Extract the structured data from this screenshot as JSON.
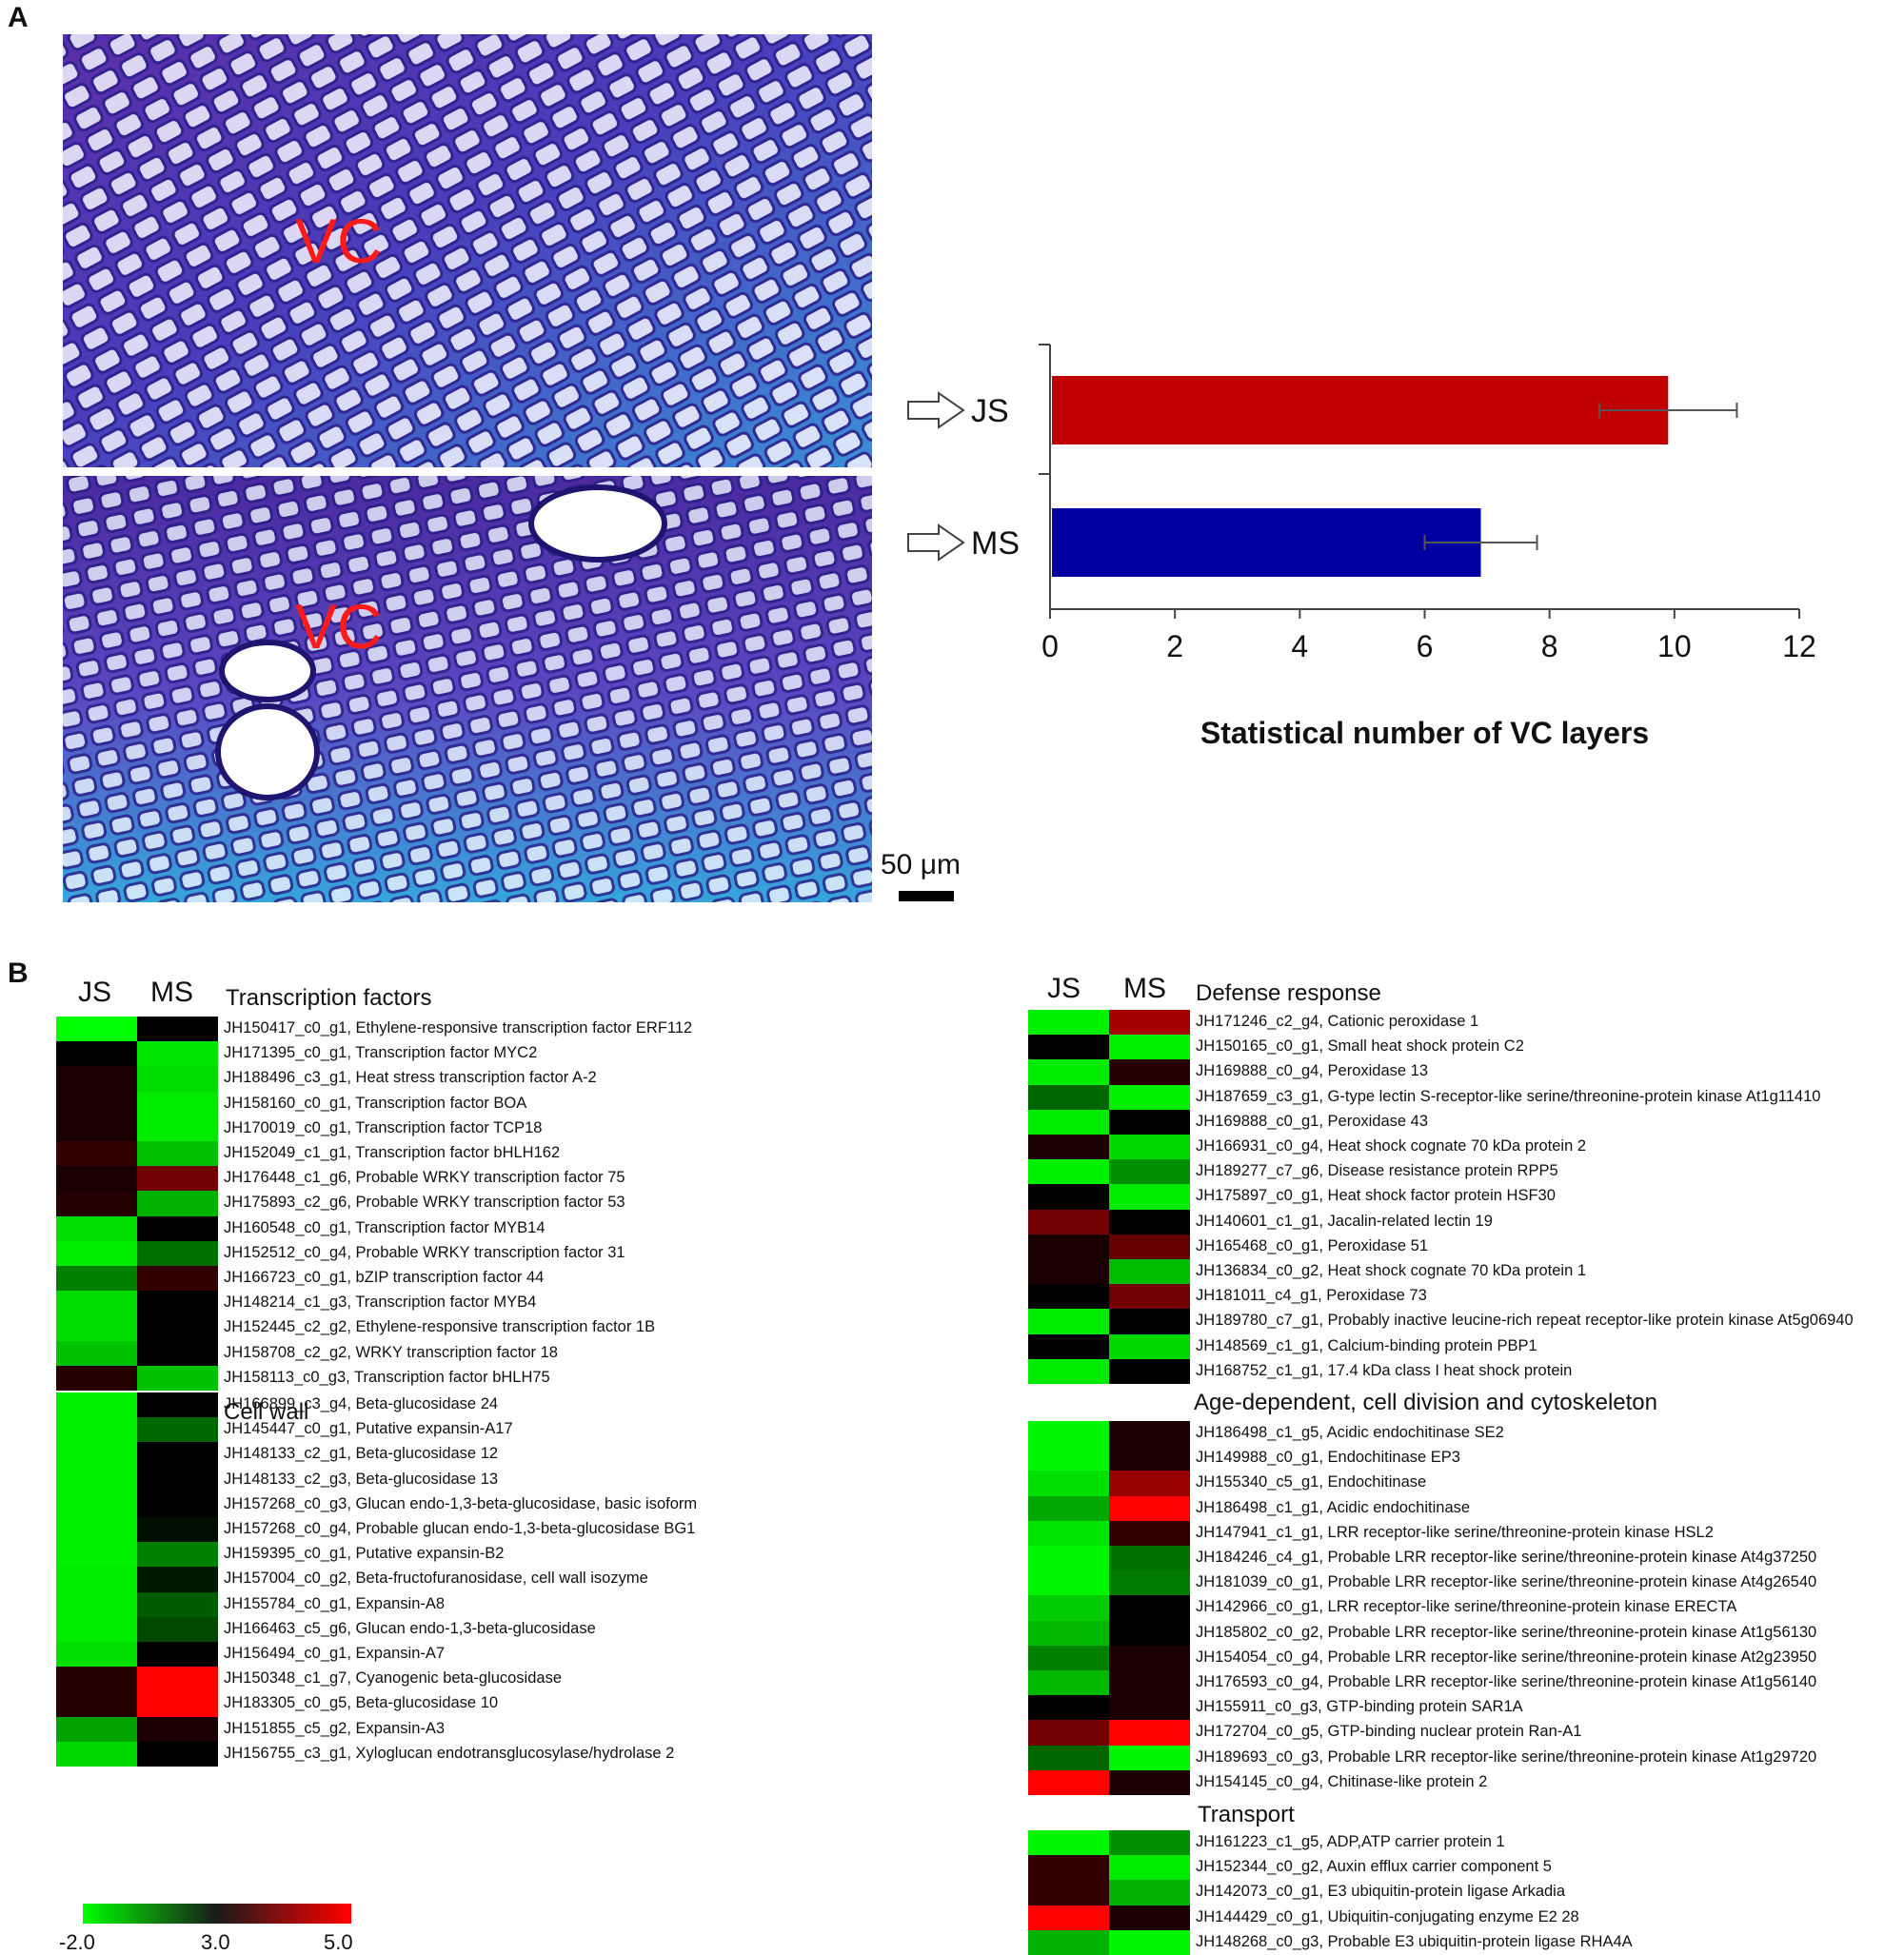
{
  "panels": {
    "a": "A",
    "b": "B"
  },
  "micrographs": {
    "top_label": "VC",
    "bottom_label": "VC",
    "scale_bar": "50 μm"
  },
  "chart_data": {
    "type": "bar",
    "orientation": "horizontal",
    "categories": [
      "JS",
      "MS"
    ],
    "values": [
      9.9,
      6.9
    ],
    "errors": [
      1.1,
      0.9
    ],
    "colors": [
      "#c00000",
      "#0000a0"
    ],
    "xlabel": "Statistical number of VC layers",
    "xlim": [
      0,
      12
    ],
    "xticks": [
      "0",
      "2",
      "4",
      "6",
      "8",
      "10",
      "12"
    ]
  },
  "heatmap_colors": {
    "low": "#00ff00",
    "mid": "#000000",
    "high": "#ff0000"
  },
  "colorscale": {
    "ticks": [
      "-2.0",
      "3.0",
      "5.0"
    ]
  },
  "col_headers": [
    "JS",
    "MS"
  ],
  "groups": [
    {
      "title": "Transcription factors",
      "rows": [
        {
          "label": "JH150417_c0_g1, Ethylene-responsive transcription factor ERF112",
          "js": -2.0,
          "ms": 3.0
        },
        {
          "label": "JH171395_c0_g1, Transcription factor MYC2",
          "js": 3.0,
          "ms": -1.5
        },
        {
          "label": "JH188496_c3_g1, Heat stress transcription factor A-2",
          "js": 3.2,
          "ms": -1.3
        },
        {
          "label": "JH158160_c0_g1, Transcription factor BOA",
          "js": 3.2,
          "ms": -1.6
        },
        {
          "label": "JH170019_c0_g1, Transcription factor TCP18",
          "js": 3.2,
          "ms": -1.6
        },
        {
          "label": "JH152049_c1_g1, Transcription factor bHLH162",
          "js": 3.4,
          "ms": -0.8
        },
        {
          "label": "JH176448_c1_g6, Probable WRKY transcription factor 75",
          "js": 3.2,
          "ms": 3.9
        },
        {
          "label": "JH175893_c2_g6, Probable WRKY transcription factor 53",
          "js": 3.3,
          "ms": -0.5
        },
        {
          "label": "JH160548_c0_g1, Transcription factor MYB14",
          "js": -1.4,
          "ms": 3.0
        },
        {
          "label": "JH152512_c0_g4, Probable WRKY transcription factor 31",
          "js": -1.6,
          "ms": 0.8
        },
        {
          "label": "JH166723_c0_g1, bZIP transcription factor 44",
          "js": 0.5,
          "ms": 3.4
        },
        {
          "label": "JH148214_c1_g3, Transcription factor MYB4",
          "js": -1.3,
          "ms": 3.0
        },
        {
          "label": "JH152445_c2_g2, Ethylene-responsive transcription factor 1B",
          "js": -1.3,
          "ms": 3.0
        },
        {
          "label": "JH158708_c2_g2, WRKY transcription factor 18",
          "js": -0.8,
          "ms": 3.0
        },
        {
          "label": "JH158113_c0_g3, Transcription factor bHLH75",
          "js": 3.3,
          "ms": -0.8
        }
      ]
    },
    {
      "title": "Cell wall",
      "rows": [
        {
          "label": "JH166899_c3_g4, Beta-glucosidase 24",
          "js": -1.7,
          "ms": 3.0
        },
        {
          "label": "JH145447_c0_g1, Putative expansin-A17",
          "js": -1.7,
          "ms": 1.0
        },
        {
          "label": "JH148133_c2_g1, Beta-glucosidase 12",
          "js": -1.7,
          "ms": 3.0
        },
        {
          "label": "JH148133_c2_g3, Beta-glucosidase 13",
          "js": -1.7,
          "ms": 3.0
        },
        {
          "label": "JH157268_c0_g3, Glucan endo-1,3-beta-glucosidase, basic isoform",
          "js": -1.7,
          "ms": 3.0
        },
        {
          "label": "JH157268_c0_g4, Probable glucan endo-1,3-beta-glucosidase BG1",
          "js": -1.7,
          "ms": 2.7
        },
        {
          "label": "JH159395_c0_g1, Putative expansin-B2",
          "js": -1.7,
          "ms": 0.5
        },
        {
          "label": "JH157004_c0_g2, Beta-fructofuranosidase, cell wall isozyme",
          "js": -1.6,
          "ms": 2.5
        },
        {
          "label": "JH155784_c0_g1, Expansin-A8",
          "js": -1.6,
          "ms": 1.2
        },
        {
          "label": "JH166463_c5_g6, Glucan endo-1,3-beta-glucosidase",
          "js": -1.6,
          "ms": 1.6
        },
        {
          "label": "JH156494_c0_g1, Expansin-A7",
          "js": -1.4,
          "ms": 3.0
        },
        {
          "label": "JH150348_c1_g7, Cyanogenic beta-glucosidase",
          "js": 3.3,
          "ms": 5.0
        },
        {
          "label": "JH183305_c0_g5, Beta-glucosidase 10",
          "js": 3.3,
          "ms": 5.0
        },
        {
          "label": "JH151855_c5_g2, Expansin-A3",
          "js": -0.2,
          "ms": 3.2
        },
        {
          "label": "JH156755_c3_g1, Xyloglucan endotransglucosylase/hydrolase 2",
          "js": -1.2,
          "ms": 3.0
        }
      ]
    },
    {
      "title": "Defense response",
      "rows": [
        {
          "label": "JH171246_c2_g4, Cationic peroxidase 1",
          "js": -1.7,
          "ms": 4.3
        },
        {
          "label": "JH150165_c0_g1, Small heat shock protein C2",
          "js": 3.0,
          "ms": -1.7
        },
        {
          "label": "JH169888_c0_g4, Peroxidase 13",
          "js": -1.6,
          "ms": 3.3
        },
        {
          "label": "JH187659_c3_g1, G-type lectin S-receptor-like serine/threonine-protein kinase At1g11410",
          "js": 1.0,
          "ms": -1.7
        },
        {
          "label": "JH169888_c0_g1, Peroxidase 43",
          "js": -1.6,
          "ms": 3.0
        },
        {
          "label": "JH166931_c0_g4, Heat shock cognate 70 kDa protein 2",
          "js": 3.2,
          "ms": -1.2
        },
        {
          "label": "JH189277_c7_g6, Disease resistance protein RPP5",
          "js": -1.7,
          "ms": 0.2
        },
        {
          "label": "JH175897_c0_g1, Heat shock factor protein HSF30",
          "js": 3.0,
          "ms": -1.6
        },
        {
          "label": "JH140601_c1_g1, Jacalin-related lectin 19",
          "js": 3.9,
          "ms": 3.0
        },
        {
          "label": "JH165468_c0_g1, Peroxidase 51",
          "js": 3.2,
          "ms": 3.8
        },
        {
          "label": "JH136834_c0_g2, Heat shock cognate 70 kDa protein 1",
          "js": 3.2,
          "ms": -0.7
        },
        {
          "label": "JH181011_c4_g1, Peroxidase 73",
          "js": 3.0,
          "ms": 3.9
        },
        {
          "label": "JH189780_c7_g1, Probably inactive leucine-rich repeat receptor-like protein kinase At5g06940",
          "js": -1.6,
          "ms": 3.0
        },
        {
          "label": "JH148569_c1_g1, Calcium-binding protein PBP1",
          "js": 3.0,
          "ms": -1.2
        },
        {
          "label": "JH168752_c1_g1, 17.4 kDa class I heat shock protein",
          "js": -1.6,
          "ms": 3.0
        }
      ]
    },
    {
      "title": "Age-dependent, cell division and cytoskeleton",
      "rows": [
        {
          "label": "JH186498_c1_g5, Acidic endochitinase SE2",
          "js": -1.8,
          "ms": 3.2
        },
        {
          "label": "JH149988_c0_g1, Endochitinase EP3",
          "js": -1.8,
          "ms": 3.2
        },
        {
          "label": "JH155340_c5_g1, Endochitinase",
          "js": -1.4,
          "ms": 4.2
        },
        {
          "label": "JH186498_c1_g1, Acidic endochitinase",
          "js": -0.3,
          "ms": 5.0
        },
        {
          "label": "JH147941_c1_g1, LRR receptor-like serine/threonine-protein kinase HSL2",
          "js": -1.5,
          "ms": 3.4
        },
        {
          "label": "JH184246_c4_g1, Probable LRR receptor-like serine/threonine-protein kinase At4g37250",
          "js": -1.8,
          "ms": 0.8
        },
        {
          "label": "JH181039_c0_g1, Probable LRR receptor-like serine/threonine-protein kinase At4g26540",
          "js": -1.8,
          "ms": 0.6
        },
        {
          "label": "JH142966_c0_g1, LRR receptor-like serine/threonine-protein kinase ERECTA",
          "js": -1.0,
          "ms": 3.0
        },
        {
          "label": "JH185802_c0_g2, Probable LRR receptor-like serine/threonine-protein kinase At1g56130",
          "js": -0.6,
          "ms": 3.0
        },
        {
          "label": "JH154054_c0_g4, Probable LRR receptor-like serine/threonine-protein kinase At2g23950",
          "js": 0.5,
          "ms": 3.2
        },
        {
          "label": "JH176593_c0_g4, Probable LRR receptor-like serine/threonine-protein kinase At1g56140",
          "js": -0.6,
          "ms": 3.2
        },
        {
          "label": "JH155911_c0_g3, GTP-binding protein SAR1A",
          "js": 3.0,
          "ms": 3.2
        },
        {
          "label": "JH172704_c0_g5, GTP-binding nuclear protein Ran-A1",
          "js": 3.9,
          "ms": 5.0
        },
        {
          "label": "JH189693_c0_g3, Probable LRR receptor-like serine/threonine-protein kinase At1g29720",
          "js": 1.0,
          "ms": -1.8
        },
        {
          "label": "JH154145_c0_g4, Chitinase-like protein 2",
          "js": 5.0,
          "ms": 3.2
        }
      ]
    },
    {
      "title": "Transport",
      "rows": [
        {
          "label": "JH161223_c1_g5, ADP,ATP carrier protein 1",
          "js": -1.8,
          "ms": 0.2
        },
        {
          "label": "JH152344_c0_g2, Auxin efflux carrier component 5",
          "js": 3.4,
          "ms": -1.6
        },
        {
          "label": "JH142073_c0_g1, E3 ubiquitin-protein ligase Arkadia",
          "js": 3.4,
          "ms": -0.5
        },
        {
          "label": "JH144429_c0_g1, Ubiquitin-conjugating enzyme E2 28",
          "js": 5.0,
          "ms": 3.2
        },
        {
          "label": "JH148268_c0_g3, Probable E3 ubiquitin-protein ligase RHA4A",
          "js": -0.5,
          "ms": -1.8
        }
      ]
    }
  ]
}
